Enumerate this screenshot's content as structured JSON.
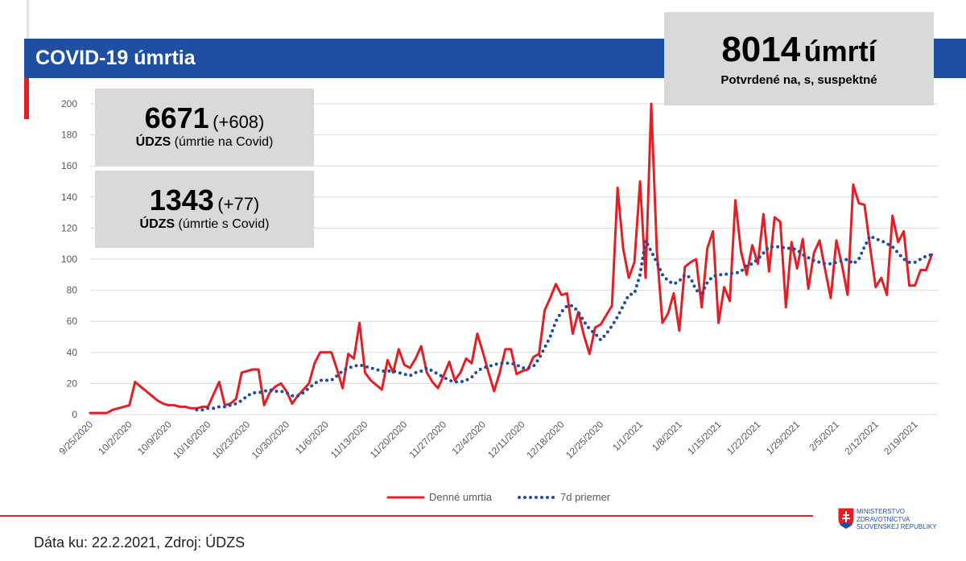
{
  "header": {
    "title": "COVID-19 úmrtia"
  },
  "total": {
    "number": "8014",
    "unit": "úmrtí",
    "note": "Potvrdené na, s, suspektné"
  },
  "panels": [
    {
      "number": "6671",
      "change": "(+608)",
      "source": "ÚDZS",
      "description": "(úmrtie na Covid)"
    },
    {
      "number": "1343",
      "change": "(+77)",
      "source": "ÚDZS",
      "description": "(úmrtie s Covid)"
    }
  ],
  "footer": "Dáta ku: 22.2.2021, Zdroj: ÚDZS",
  "logo": [
    "MINISTERSTVO",
    "ZDRAVOTNÍCTVA",
    "SLOVENSKEJ REPUBLIKY"
  ],
  "chart_data": {
    "type": "line",
    "categories": [
      "9/25/2020",
      null,
      null,
      null,
      null,
      null,
      null,
      "10/2/2020",
      null,
      null,
      null,
      null,
      null,
      null,
      "10/9/2020",
      null,
      null,
      null,
      null,
      null,
      null,
      "10/16/2020",
      null,
      null,
      null,
      null,
      null,
      null,
      "10/23/2020",
      null,
      null,
      null,
      null,
      null,
      null,
      "10/30/2020",
      null,
      null,
      null,
      null,
      null,
      null,
      "11/6/2020",
      null,
      null,
      null,
      null,
      null,
      null,
      "11/13/2020",
      null,
      null,
      null,
      null,
      null,
      null,
      "11/20/2020",
      null,
      null,
      null,
      null,
      null,
      null,
      "11/27/2020",
      null,
      null,
      null,
      null,
      null,
      null,
      "12/4/2020",
      null,
      null,
      null,
      null,
      null,
      null,
      "12/11/2020",
      null,
      null,
      null,
      null,
      null,
      null,
      "12/18/2020",
      null,
      null,
      null,
      null,
      null,
      null,
      "12/25/2020",
      null,
      null,
      null,
      null,
      null,
      null,
      "1/1/2021",
      null,
      null,
      null,
      null,
      null,
      null,
      "1/8/2021",
      null,
      null,
      null,
      null,
      null,
      null,
      "1/15/2021",
      null,
      null,
      null,
      null,
      null,
      null,
      "1/22/2021",
      null,
      null,
      null,
      null,
      null,
      null,
      "1/29/2021",
      null,
      null,
      null,
      null,
      null,
      null,
      "2/5/2021",
      null,
      null,
      null,
      null,
      null,
      null,
      "2/12/2021",
      null,
      null,
      null,
      null,
      null,
      null,
      "2/19/2021",
      null,
      null,
      null
    ],
    "series": [
      {
        "name": "Denné umrtia",
        "color": "#e31e24",
        "style": "solid",
        "values": [
          1,
          1,
          1,
          1,
          3,
          4,
          5,
          6,
          21,
          18,
          15,
          12,
          9,
          7,
          6,
          6,
          5,
          5,
          4,
          4,
          5,
          5,
          13,
          21,
          6,
          7,
          10,
          27,
          28,
          29,
          29,
          6,
          14,
          18,
          20,
          15,
          7,
          12,
          16,
          20,
          33,
          40,
          40,
          40,
          29,
          17,
          39,
          36,
          59,
          27,
          22,
          19,
          16,
          35,
          27,
          42,
          32,
          30,
          36,
          44,
          27,
          21,
          17,
          25,
          34,
          22,
          27,
          36,
          33,
          52,
          40,
          27,
          15,
          27,
          42,
          42,
          26,
          28,
          29,
          37,
          39,
          67,
          75,
          84,
          77,
          78,
          52,
          66,
          51,
          39,
          56,
          58,
          64,
          70,
          146,
          107,
          88,
          98,
          150,
          88,
          200,
          105,
          59,
          65,
          78,
          54,
          95,
          98,
          100,
          69,
          107,
          118,
          59,
          82,
          73,
          138,
          105,
          90,
          109,
          97,
          129,
          92,
          127,
          124,
          69,
          111,
          94,
          113,
          81,
          104,
          112,
          93,
          75,
          112,
          96,
          77,
          148,
          136,
          135,
          108,
          82,
          88,
          77,
          128,
          111,
          118,
          83,
          83,
          93,
          93,
          103
        ]
      },
      {
        "name": "7d priemer",
        "color": "#1f4e9c",
        "style": "dotted",
        "values": [
          null,
          null,
          null,
          null,
          null,
          null,
          null,
          null,
          null,
          null,
          null,
          null,
          null,
          null,
          null,
          null,
          null,
          null,
          null,
          3,
          3,
          4,
          4,
          5,
          5,
          6,
          7,
          9,
          12,
          14,
          14,
          15,
          16,
          15,
          15,
          14,
          12,
          12,
          14,
          17,
          20,
          22,
          22,
          22,
          25,
          28,
          30,
          31,
          32,
          31,
          30,
          29,
          28,
          28,
          28,
          27,
          26,
          25,
          27,
          28,
          30,
          28,
          26,
          24,
          22,
          21,
          21,
          22,
          24,
          28,
          30,
          31,
          32,
          33,
          33,
          33,
          32,
          30,
          30,
          31,
          36,
          43,
          50,
          60,
          66,
          70,
          70,
          66,
          60,
          55,
          52,
          48,
          52,
          57,
          63,
          70,
          77,
          78,
          90,
          112,
          105,
          98,
          90,
          86,
          84,
          86,
          90,
          88,
          80,
          78,
          85,
          89,
          90,
          90,
          91,
          91,
          92,
          96,
          97,
          100,
          104,
          108,
          108,
          108,
          107,
          107,
          106,
          103,
          101,
          99,
          98,
          97,
          97,
          98,
          99,
          100,
          97,
          100,
          108,
          115,
          113,
          112,
          110,
          108,
          104,
          100,
          98,
          98,
          100,
          102,
          103
        ]
      }
    ],
    "ylim": [
      0,
      200
    ],
    "yticks": [
      0,
      20,
      40,
      60,
      80,
      100,
      120,
      140,
      160,
      180,
      200
    ],
    "grid": true
  }
}
